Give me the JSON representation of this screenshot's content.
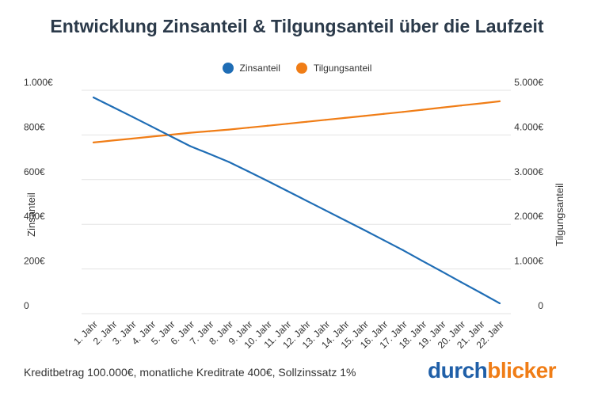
{
  "title": "Entwicklung Zinsanteil & Tilgungsanteil über die Laufzeit",
  "footnote": "Kreditbetrag 100.000€, monatliche Kreditrate 400€, Sollzinssatz 1%",
  "logo": {
    "part1": "durch",
    "part2": "blicker"
  },
  "colors": {
    "zins": "#1f6db5",
    "tilgung": "#f07d16",
    "grid": "#e3e3e3"
  },
  "chart_data": {
    "type": "line",
    "title": "Entwicklung Zinsanteil & Tilgungsanteil über die Laufzeit",
    "categories": [
      "1. Jahr",
      "2. Jahr",
      "3. Jahr",
      "4. Jahr",
      "5. Jahr",
      "6. Jahr",
      "7. Jahr",
      "8. Jahr",
      "9. Jahr",
      "10. Jahr",
      "11. Jahr",
      "12. Jahr",
      "13. Jahr",
      "14. Jahr",
      "15. Jahr",
      "16. Jahr",
      "17. Jahr",
      "18. Jahr",
      "19. Jahr",
      "20. Jahr",
      "21. Jahr",
      "22. Jahr"
    ],
    "series": [
      {
        "name": "Zinsanteil",
        "axis": "left",
        "values": [
          968,
          925,
          882,
          838,
          794,
          750,
          715,
          679,
          637,
          594,
          550,
          506,
          462,
          418,
          374,
          329,
          284,
          236,
          189,
          141,
          94,
          46
        ]
      },
      {
        "name": "Tilgungsanteil",
        "axis": "right",
        "values": [
          3832,
          3875,
          3918,
          3962,
          4006,
          4050,
          4085,
          4121,
          4163,
          4206,
          4250,
          4294,
          4338,
          4382,
          4426,
          4471,
          4516,
          4564,
          4611,
          4659,
          4706,
          4754
        ]
      }
    ],
    "y_left": {
      "label": "Zinsanteil",
      "ylim": [
        0,
        1000
      ],
      "ticks": [
        {
          "value": 0,
          "label": "0"
        },
        {
          "value": 200,
          "label": "200€"
        },
        {
          "value": 400,
          "label": "400€"
        },
        {
          "value": 600,
          "label": "600€"
        },
        {
          "value": 800,
          "label": "800€"
        },
        {
          "value": 1000,
          "label": "1.000€"
        }
      ]
    },
    "y_right": {
      "label": "Tilgungsanteil",
      "ylim": [
        0,
        5000
      ],
      "ticks": [
        {
          "value": 0,
          "label": "0"
        },
        {
          "value": 1000,
          "label": "1.000€"
        },
        {
          "value": 2000,
          "label": "2.000€"
        },
        {
          "value": 3000,
          "label": "3.000€"
        },
        {
          "value": 4000,
          "label": "4.000€"
        },
        {
          "value": 5000,
          "label": "5.000€"
        }
      ]
    },
    "legend": "top-center",
    "grid": true
  }
}
